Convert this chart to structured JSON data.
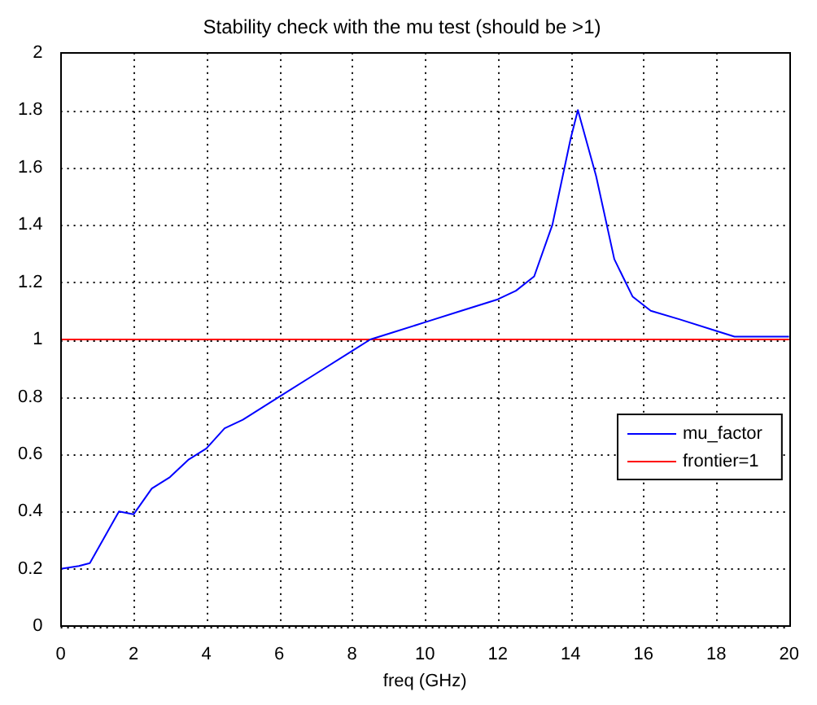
{
  "chart_data": {
    "type": "line",
    "title": "Stability check with the mu test (should be >1)",
    "xlabel": "freq (GHz)",
    "x": [
      0,
      0.5,
      0.8,
      1.6,
      2.0,
      2.5,
      3.0,
      3.5,
      4,
      4.5,
      5,
      6,
      7,
      8,
      8.5,
      9,
      10,
      11,
      12,
      12.5,
      13,
      13.5,
      14,
      14.2,
      14.7,
      15.2,
      15.7,
      16.2,
      17,
      18,
      18.5,
      20
    ],
    "series": [
      {
        "name": "mu_factor",
        "color": "#0000ff",
        "values": [
          0.2,
          0.21,
          0.22,
          0.4,
          0.39,
          0.48,
          0.52,
          0.58,
          0.62,
          0.69,
          0.72,
          0.8,
          0.88,
          0.96,
          1.0,
          1.02,
          1.06,
          1.1,
          1.14,
          1.17,
          1.22,
          1.4,
          1.7,
          1.8,
          1.57,
          1.28,
          1.15,
          1.1,
          1.07,
          1.03,
          1.01,
          1.01
        ]
      }
    ],
    "ref_lines": [
      {
        "axis": "y",
        "value": 1,
        "label": "frontier=1",
        "color": "#ff0000"
      }
    ],
    "xlim": [
      0,
      20
    ],
    "xticks": [
      0,
      2,
      4,
      6,
      8,
      10,
      12,
      14,
      16,
      18,
      20
    ],
    "ylim": [
      0,
      2
    ],
    "yticks": [
      0,
      0.2,
      0.4,
      0.6,
      0.8,
      1,
      1.2,
      1.4,
      1.6,
      1.8,
      2
    ],
    "grid": true,
    "legend": "right",
    "line_style": "solid",
    "marker": "none"
  }
}
